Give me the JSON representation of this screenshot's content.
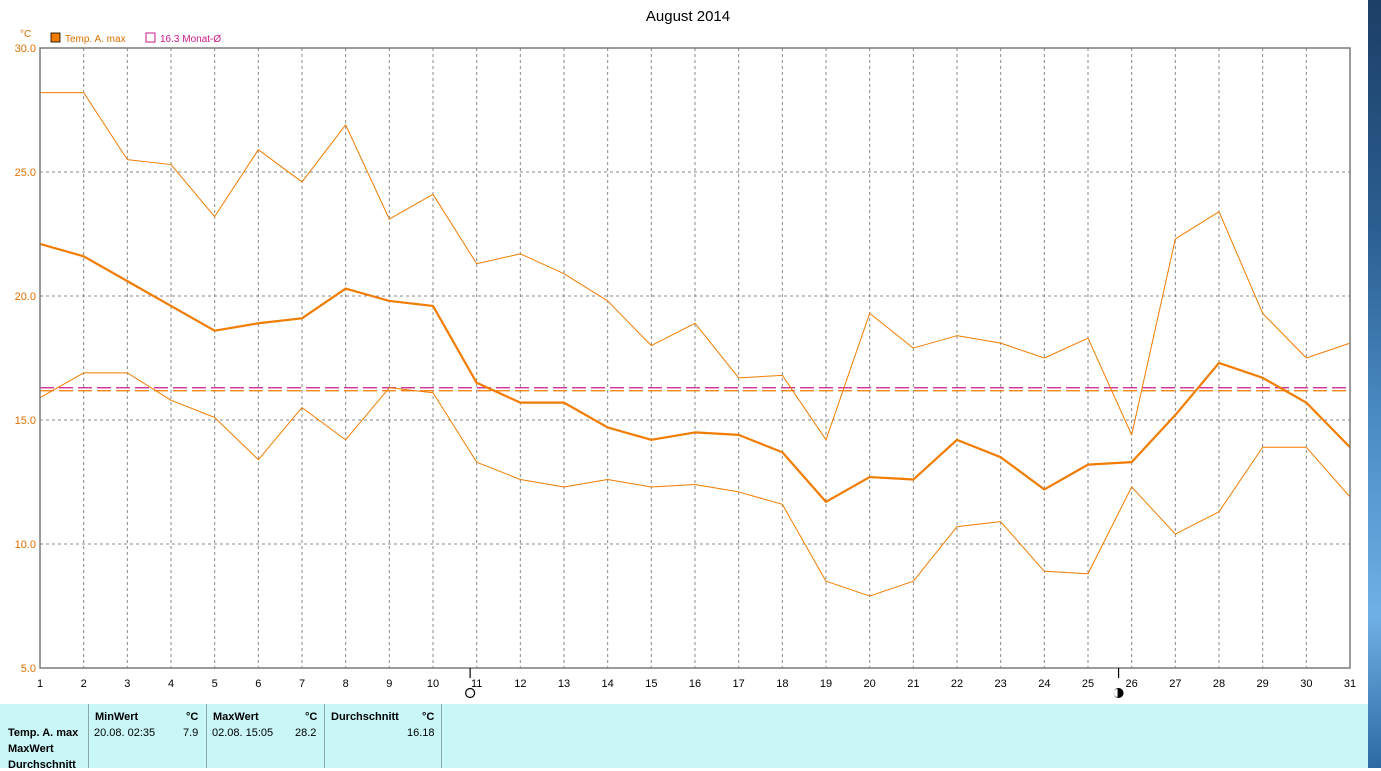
{
  "chart_data": {
    "type": "line",
    "title": "August 2014",
    "unit_label": "°C",
    "ylim": [
      5,
      30
    ],
    "yticks": [
      "5.0",
      "10.0",
      "15.0",
      "20.0",
      "25.0",
      "30.0"
    ],
    "x": [
      1,
      2,
      3,
      4,
      5,
      6,
      7,
      8,
      9,
      10,
      11,
      12,
      13,
      14,
      15,
      16,
      17,
      18,
      19,
      20,
      21,
      22,
      23,
      24,
      25,
      26,
      27,
      28,
      29,
      30,
      31
    ],
    "legend": [
      {
        "label": "Temp. A. max",
        "color": "#f07c00",
        "symbol": "filled-square"
      },
      {
        "label": "16.3 Monat-Ø",
        "color": "#cc1a8a",
        "symbol": "open-square"
      }
    ],
    "series": [
      {
        "role": "daily-max",
        "color": "#f07c00",
        "width": 1,
        "values": [
          28.2,
          28.2,
          25.5,
          25.3,
          23.2,
          25.9,
          24.6,
          26.9,
          23.1,
          24.1,
          21.3,
          21.7,
          20.9,
          19.8,
          18.0,
          18.9,
          16.7,
          16.8,
          14.2,
          19.3,
          17.9,
          18.4,
          18.1,
          17.5,
          18.3,
          14.4,
          22.3,
          23.4,
          19.3,
          17.5,
          18.1
        ]
      },
      {
        "role": "daily-mean",
        "color": "#f07c00",
        "width": 2.2,
        "values": [
          22.1,
          21.6,
          20.6,
          19.6,
          18.6,
          18.9,
          19.1,
          20.3,
          19.8,
          19.6,
          16.5,
          15.7,
          15.7,
          14.7,
          14.2,
          14.5,
          14.4,
          13.7,
          11.7,
          12.7,
          12.6,
          14.2,
          13.5,
          12.2,
          13.2,
          13.3,
          15.2,
          17.3,
          16.7,
          15.7,
          13.9
        ]
      },
      {
        "role": "daily-min",
        "color": "#f07c00",
        "width": 1,
        "values": [
          15.9,
          16.9,
          16.9,
          15.8,
          15.1,
          13.4,
          15.5,
          14.2,
          16.3,
          16.1,
          13.3,
          12.6,
          12.3,
          12.6,
          12.3,
          12.4,
          12.1,
          11.6,
          8.5,
          7.9,
          8.5,
          10.7,
          10.9,
          8.9,
          8.8,
          12.3,
          10.4,
          11.3,
          13.9,
          13.9,
          11.9
        ]
      }
    ],
    "reference_lines": [
      {
        "value": 16.3,
        "color": "#cc1a8a",
        "style": "dashed"
      },
      {
        "value": 16.18,
        "color": "#f07c00",
        "style": "dashed"
      }
    ],
    "moon_phases": [
      {
        "x": 10.85,
        "phase": "full-moon"
      },
      {
        "x": 25.7,
        "phase": "new-moon"
      }
    ],
    "grid": true
  },
  "stats": {
    "rows": [
      "Temp. A. max",
      "MaxWert",
      "Durchschnitt"
    ],
    "columns": [
      {
        "header": "MinWert",
        "unit": "°C",
        "time": "20.08.  02:35",
        "value": "7.9"
      },
      {
        "header": "MaxWert",
        "unit": "°C",
        "time": "02.08.  15:05",
        "value": "28.2"
      },
      {
        "header": "Durchschnitt",
        "unit": "°C",
        "time": "",
        "value": "16.18"
      }
    ]
  }
}
